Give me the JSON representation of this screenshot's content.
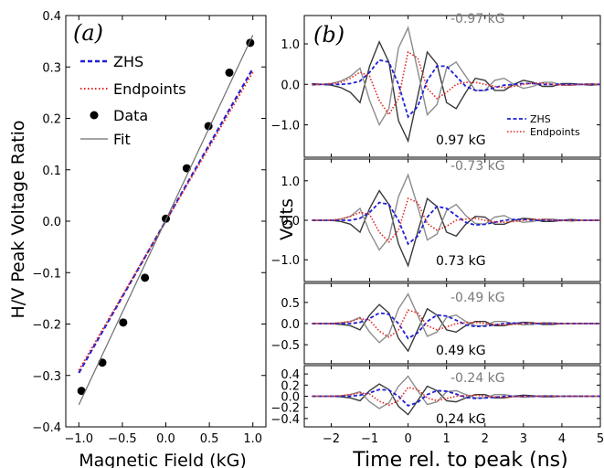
{
  "chart_data": [
    {
      "panel_label": "(a)",
      "type": "scatter",
      "xlabel": "Magnetic Field (kG)",
      "ylabel": "H/V Peak Voltage Ratio",
      "xlim": [
        -1.15,
        1.15
      ],
      "ylim": [
        -0.4,
        0.4
      ],
      "xticks": [
        -1.0,
        -0.5,
        0.0,
        0.5,
        1.0
      ],
      "xtick_labels": [
        "−1.0",
        "−0.5",
        "0.0",
        "0.5",
        "1.0"
      ],
      "yticks": [
        -0.4,
        -0.3,
        -0.2,
        -0.1,
        0.0,
        0.1,
        0.2,
        0.3,
        0.4
      ],
      "ytick_labels": [
        "−0.4",
        "−0.3",
        "−0.2",
        "−0.1",
        "0.0",
        "0.1",
        "0.2",
        "0.3",
        "0.4"
      ],
      "legend": {
        "placement": "upper-left",
        "entries": [
          "ZHS",
          "Endpoints",
          "Data",
          "Fit"
        ]
      },
      "series": [
        {
          "name": "ZHS",
          "style": "dashed",
          "color": "#1f1fd6",
          "x": [
            -1.0,
            1.0
          ],
          "y": [
            -0.295,
            0.297
          ]
        },
        {
          "name": "Endpoints",
          "style": "dotted",
          "color": "#e0261f",
          "x": [
            -1.0,
            1.0
          ],
          "y": [
            -0.29,
            0.29
          ]
        },
        {
          "name": "Data",
          "style": "markers",
          "color": "#000000",
          "x": [
            -0.97,
            -0.73,
            -0.49,
            -0.24,
            0.0,
            0.24,
            0.49,
            0.73,
            0.97
          ],
          "y": [
            -0.33,
            -0.275,
            -0.197,
            -0.11,
            0.005,
            0.103,
            0.185,
            0.289,
            0.347
          ]
        },
        {
          "name": "Fit",
          "style": "solid",
          "color": "#6e6e6e",
          "x": [
            -1.0,
            1.0
          ],
          "y": [
            -0.357,
            0.362
          ]
        }
      ]
    },
    {
      "panel_label": "(b)",
      "type": "line",
      "xlabel": "Time rel. to peak (ns)",
      "ylabel": "Volts",
      "xlim": [
        -2.7,
        5.0
      ],
      "xticks": [
        -2,
        -1,
        0,
        1,
        2,
        3,
        4,
        5
      ],
      "xtick_labels": [
        "−2",
        "−1",
        "0",
        "1",
        "2",
        "3",
        "4",
        "5"
      ],
      "legend": {
        "placement": "inside top panel, right",
        "entries": [
          "ZHS",
          "Endpoints"
        ]
      },
      "panels": [
        {
          "B_pos": "0.97 kG",
          "B_neg": "-0.97 kG",
          "ylim": [
            -1.8,
            1.7
          ],
          "yticks": [
            -1.0,
            0.0,
            1.0
          ],
          "ytick_labels": [
            "−1.0",
            "0.0",
            "1.0"
          ]
        },
        {
          "B_pos": "0.73 kG",
          "B_neg": "-0.73 kG",
          "ylim": [
            -1.55,
            1.55
          ],
          "yticks": [
            -1.0,
            0.0,
            1.0
          ],
          "ytick_labels": [
            "−1.0",
            "0.0",
            "1.0"
          ]
        },
        {
          "B_pos": "0.49 kG",
          "B_neg": "-0.49 kG",
          "ylim": [
            -0.95,
            0.95
          ],
          "yticks": [
            -0.5,
            0.0,
            0.5
          ],
          "ytick_labels": [
            "−0.5",
            "0.0",
            "0.5"
          ]
        },
        {
          "B_pos": "0.24 kG",
          "B_neg": "-0.24 kG",
          "ylim": [
            -0.55,
            0.55
          ],
          "yticks": [
            -0.4,
            -0.2,
            0.0,
            0.2,
            0.4
          ],
          "ytick_labels": [
            "−0.4",
            "−0.2",
            "0.0",
            "0.2",
            "0.4"
          ]
        }
      ],
      "t": [
        -2.5,
        -2.25,
        -2.0,
        -1.75,
        -1.5,
        -1.25,
        -1.0,
        -0.75,
        -0.5,
        -0.25,
        0.0,
        0.25,
        0.5,
        0.75,
        1.0,
        1.25,
        1.5,
        1.75,
        2.0,
        2.25,
        2.5,
        2.75,
        3.0,
        3.25,
        3.5,
        3.75,
        4.0,
        4.25,
        4.5,
        4.75,
        5.0
      ],
      "traces": [
        [
          {
            "name": "Data +B",
            "color": "#3a3a3a",
            "values": [
              0.02,
              0.0,
              -0.02,
              -0.08,
              -0.2,
              -0.45,
              0.45,
              1.05,
              0.55,
              -0.9,
              -1.4,
              -0.3,
              0.8,
              0.5,
              -0.45,
              -0.6,
              -0.2,
              0.15,
              0.1,
              -0.15,
              -0.15,
              0.0,
              0.1,
              0.05,
              -0.05,
              -0.05,
              0.02,
              0.02,
              0.0,
              -0.02,
              0.0
            ]
          },
          {
            "name": "Data −B",
            "color": "#8c8c8c",
            "values": [
              -0.02,
              0.0,
              0.02,
              0.08,
              0.2,
              0.4,
              -0.4,
              -1.0,
              -0.6,
              0.9,
              1.4,
              0.35,
              -0.75,
              -0.5,
              0.4,
              0.55,
              0.2,
              -0.15,
              -0.15,
              0.1,
              0.15,
              0.0,
              -0.1,
              -0.05,
              0.05,
              0.05,
              -0.02,
              -0.02,
              0.0,
              0.02,
              0.0
            ]
          },
          {
            "name": "ZHS",
            "color": "#1f1fd6",
            "values": [
              0.0,
              0.0,
              0.0,
              0.0,
              0.02,
              0.08,
              0.3,
              0.6,
              0.55,
              0.0,
              -0.8,
              -0.55,
              0.1,
              0.45,
              0.45,
              0.2,
              -0.05,
              -0.15,
              -0.15,
              -0.08,
              -0.02,
              0.0,
              0.02,
              0.02,
              0.0,
              0.0,
              0.0,
              0.0,
              0.0,
              0.0,
              0.0
            ]
          },
          {
            "name": "Endpoints",
            "color": "#e0261f",
            "values": [
              0.0,
              0.0,
              0.02,
              0.05,
              0.15,
              0.3,
              0.2,
              -0.4,
              -0.75,
              -0.35,
              0.8,
              0.65,
              -0.1,
              -0.35,
              -0.2,
              0.0,
              0.05,
              0.05,
              0.0,
              -0.05,
              -0.08,
              -0.05,
              0.0,
              0.03,
              0.03,
              0.0,
              -0.02,
              -0.02,
              0.0,
              0.0,
              0.0
            ]
          }
        ],
        [
          {
            "name": "Data +B",
            "color": "#3a3a3a",
            "values": [
              0.0,
              0.0,
              0.0,
              -0.03,
              -0.1,
              -0.3,
              0.3,
              0.75,
              0.4,
              -0.6,
              -1.15,
              -0.3,
              0.55,
              0.35,
              -0.3,
              -0.4,
              -0.1,
              0.1,
              0.08,
              -0.1,
              -0.1,
              0.0,
              0.05,
              0.03,
              -0.03,
              -0.03,
              0.0,
              0.02,
              0.0,
              0.0,
              0.0
            ]
          },
          {
            "name": "Data −B",
            "color": "#8c8c8c",
            "values": [
              0.0,
              0.0,
              0.0,
              0.03,
              0.1,
              0.3,
              -0.3,
              -0.75,
              -0.45,
              0.6,
              1.15,
              0.35,
              -0.5,
              -0.35,
              0.25,
              0.4,
              0.12,
              -0.08,
              -0.1,
              0.08,
              0.12,
              0.0,
              -0.05,
              -0.03,
              0.03,
              0.03,
              0.0,
              -0.02,
              0.0,
              0.0,
              0.0
            ]
          },
          {
            "name": "ZHS",
            "color": "#1f1fd6",
            "values": [
              0.0,
              0.0,
              0.0,
              0.0,
              0.0,
              0.05,
              0.2,
              0.45,
              0.4,
              0.0,
              -0.6,
              -0.4,
              0.08,
              0.35,
              0.3,
              0.12,
              -0.05,
              -0.12,
              -0.1,
              -0.05,
              0.0,
              0.02,
              0.02,
              0.0,
              0.0,
              0.0,
              0.0,
              0.0,
              0.0,
              0.0,
              0.0
            ]
          },
          {
            "name": "Endpoints",
            "color": "#e0261f",
            "values": [
              0.0,
              0.0,
              0.0,
              0.03,
              0.1,
              0.2,
              0.15,
              -0.3,
              -0.55,
              -0.25,
              0.55,
              0.45,
              -0.08,
              -0.25,
              -0.15,
              0.0,
              0.03,
              0.05,
              0.0,
              -0.04,
              -0.05,
              -0.03,
              0.0,
              0.02,
              0.02,
              0.0,
              -0.01,
              0.0,
              0.0,
              0.0,
              0.0
            ]
          }
        ],
        [
          {
            "name": "Data +B",
            "color": "#3a3a3a",
            "values": [
              0.0,
              0.0,
              0.0,
              -0.02,
              -0.05,
              -0.15,
              0.2,
              0.45,
              0.25,
              -0.35,
              -0.65,
              -0.15,
              0.35,
              0.2,
              -0.15,
              -0.2,
              -0.05,
              0.05,
              0.05,
              -0.05,
              -0.05,
              0.0,
              0.03,
              0.02,
              -0.02,
              -0.02,
              0.0,
              0.0,
              0.0,
              0.0,
              0.0
            ]
          },
          {
            "name": "Data −B",
            "color": "#8c8c8c",
            "values": [
              0.0,
              0.0,
              0.0,
              0.02,
              0.05,
              0.15,
              -0.2,
              -0.45,
              -0.25,
              0.35,
              0.7,
              0.2,
              -0.3,
              -0.2,
              0.15,
              0.2,
              0.05,
              -0.05,
              -0.05,
              0.05,
              0.05,
              0.0,
              -0.03,
              -0.02,
              0.02,
              0.02,
              0.0,
              0.0,
              0.0,
              0.0,
              0.0
            ]
          },
          {
            "name": "ZHS",
            "color": "#1f1fd6",
            "values": [
              0.0,
              0.0,
              0.0,
              0.0,
              0.0,
              0.03,
              0.12,
              0.25,
              0.22,
              0.0,
              -0.35,
              -0.22,
              0.05,
              0.2,
              0.18,
              0.08,
              -0.03,
              -0.07,
              -0.06,
              -0.03,
              0.0,
              0.01,
              0.01,
              0.0,
              0.0,
              0.0,
              0.0,
              0.0,
              0.0,
              0.0,
              0.0
            ]
          },
          {
            "name": "Endpoints",
            "color": "#e0261f",
            "values": [
              0.0,
              0.0,
              0.0,
              0.02,
              0.05,
              0.12,
              0.08,
              -0.18,
              -0.32,
              -0.15,
              0.32,
              0.25,
              -0.05,
              -0.15,
              -0.08,
              0.0,
              0.02,
              0.03,
              0.0,
              -0.02,
              -0.03,
              -0.02,
              0.0,
              0.01,
              0.01,
              0.0,
              0.0,
              0.0,
              0.0,
              0.0,
              0.0
            ]
          }
        ],
        [
          {
            "name": "Data +B",
            "color": "#3a3a3a",
            "values": [
              0.0,
              0.0,
              0.0,
              -0.01,
              -0.03,
              -0.08,
              0.1,
              0.22,
              0.12,
              -0.18,
              -0.33,
              -0.08,
              0.18,
              0.1,
              -0.08,
              -0.1,
              -0.03,
              0.03,
              0.03,
              -0.03,
              -0.03,
              0.0,
              0.02,
              0.01,
              -0.01,
              -0.01,
              0.0,
              0.0,
              0.0,
              0.0,
              0.0
            ]
          },
          {
            "name": "Data −B",
            "color": "#8c8c8c",
            "values": [
              0.0,
              0.0,
              0.0,
              0.01,
              0.03,
              0.08,
              -0.1,
              -0.22,
              -0.12,
              0.18,
              0.36,
              0.1,
              -0.15,
              -0.1,
              0.08,
              0.1,
              0.03,
              -0.03,
              -0.03,
              0.03,
              0.03,
              0.0,
              -0.02,
              -0.01,
              0.01,
              0.01,
              0.0,
              0.0,
              0.0,
              0.0,
              0.0
            ]
          },
          {
            "name": "ZHS",
            "color": "#1f1fd6",
            "values": [
              0.0,
              0.0,
              0.0,
              0.0,
              0.0,
              0.02,
              0.06,
              0.12,
              0.11,
              0.0,
              -0.17,
              -0.11,
              0.03,
              0.1,
              0.09,
              0.04,
              -0.02,
              -0.04,
              -0.03,
              -0.02,
              0.0,
              0.0,
              0.0,
              0.0,
              0.0,
              0.0,
              0.0,
              0.0,
              0.0,
              0.0,
              0.0
            ]
          },
          {
            "name": "Endpoints",
            "color": "#e0261f",
            "values": [
              0.0,
              0.0,
              0.0,
              0.01,
              0.03,
              0.06,
              0.04,
              -0.09,
              -0.16,
              -0.08,
              0.16,
              0.12,
              -0.03,
              -0.08,
              -0.04,
              0.0,
              0.01,
              0.02,
              0.0,
              -0.01,
              -0.02,
              -0.01,
              0.0,
              0.0,
              0.0,
              0.0,
              0.0,
              0.0,
              0.0,
              0.0,
              0.0
            ]
          }
        ]
      ]
    }
  ],
  "colors": {
    "zhs": "#1f1fd6",
    "endpoints": "#e0261f",
    "data_pos": "#3a3a3a",
    "data_neg": "#8c8c8c",
    "fit": "#6e6e6e",
    "label_neg": "#7a7a7a"
  }
}
